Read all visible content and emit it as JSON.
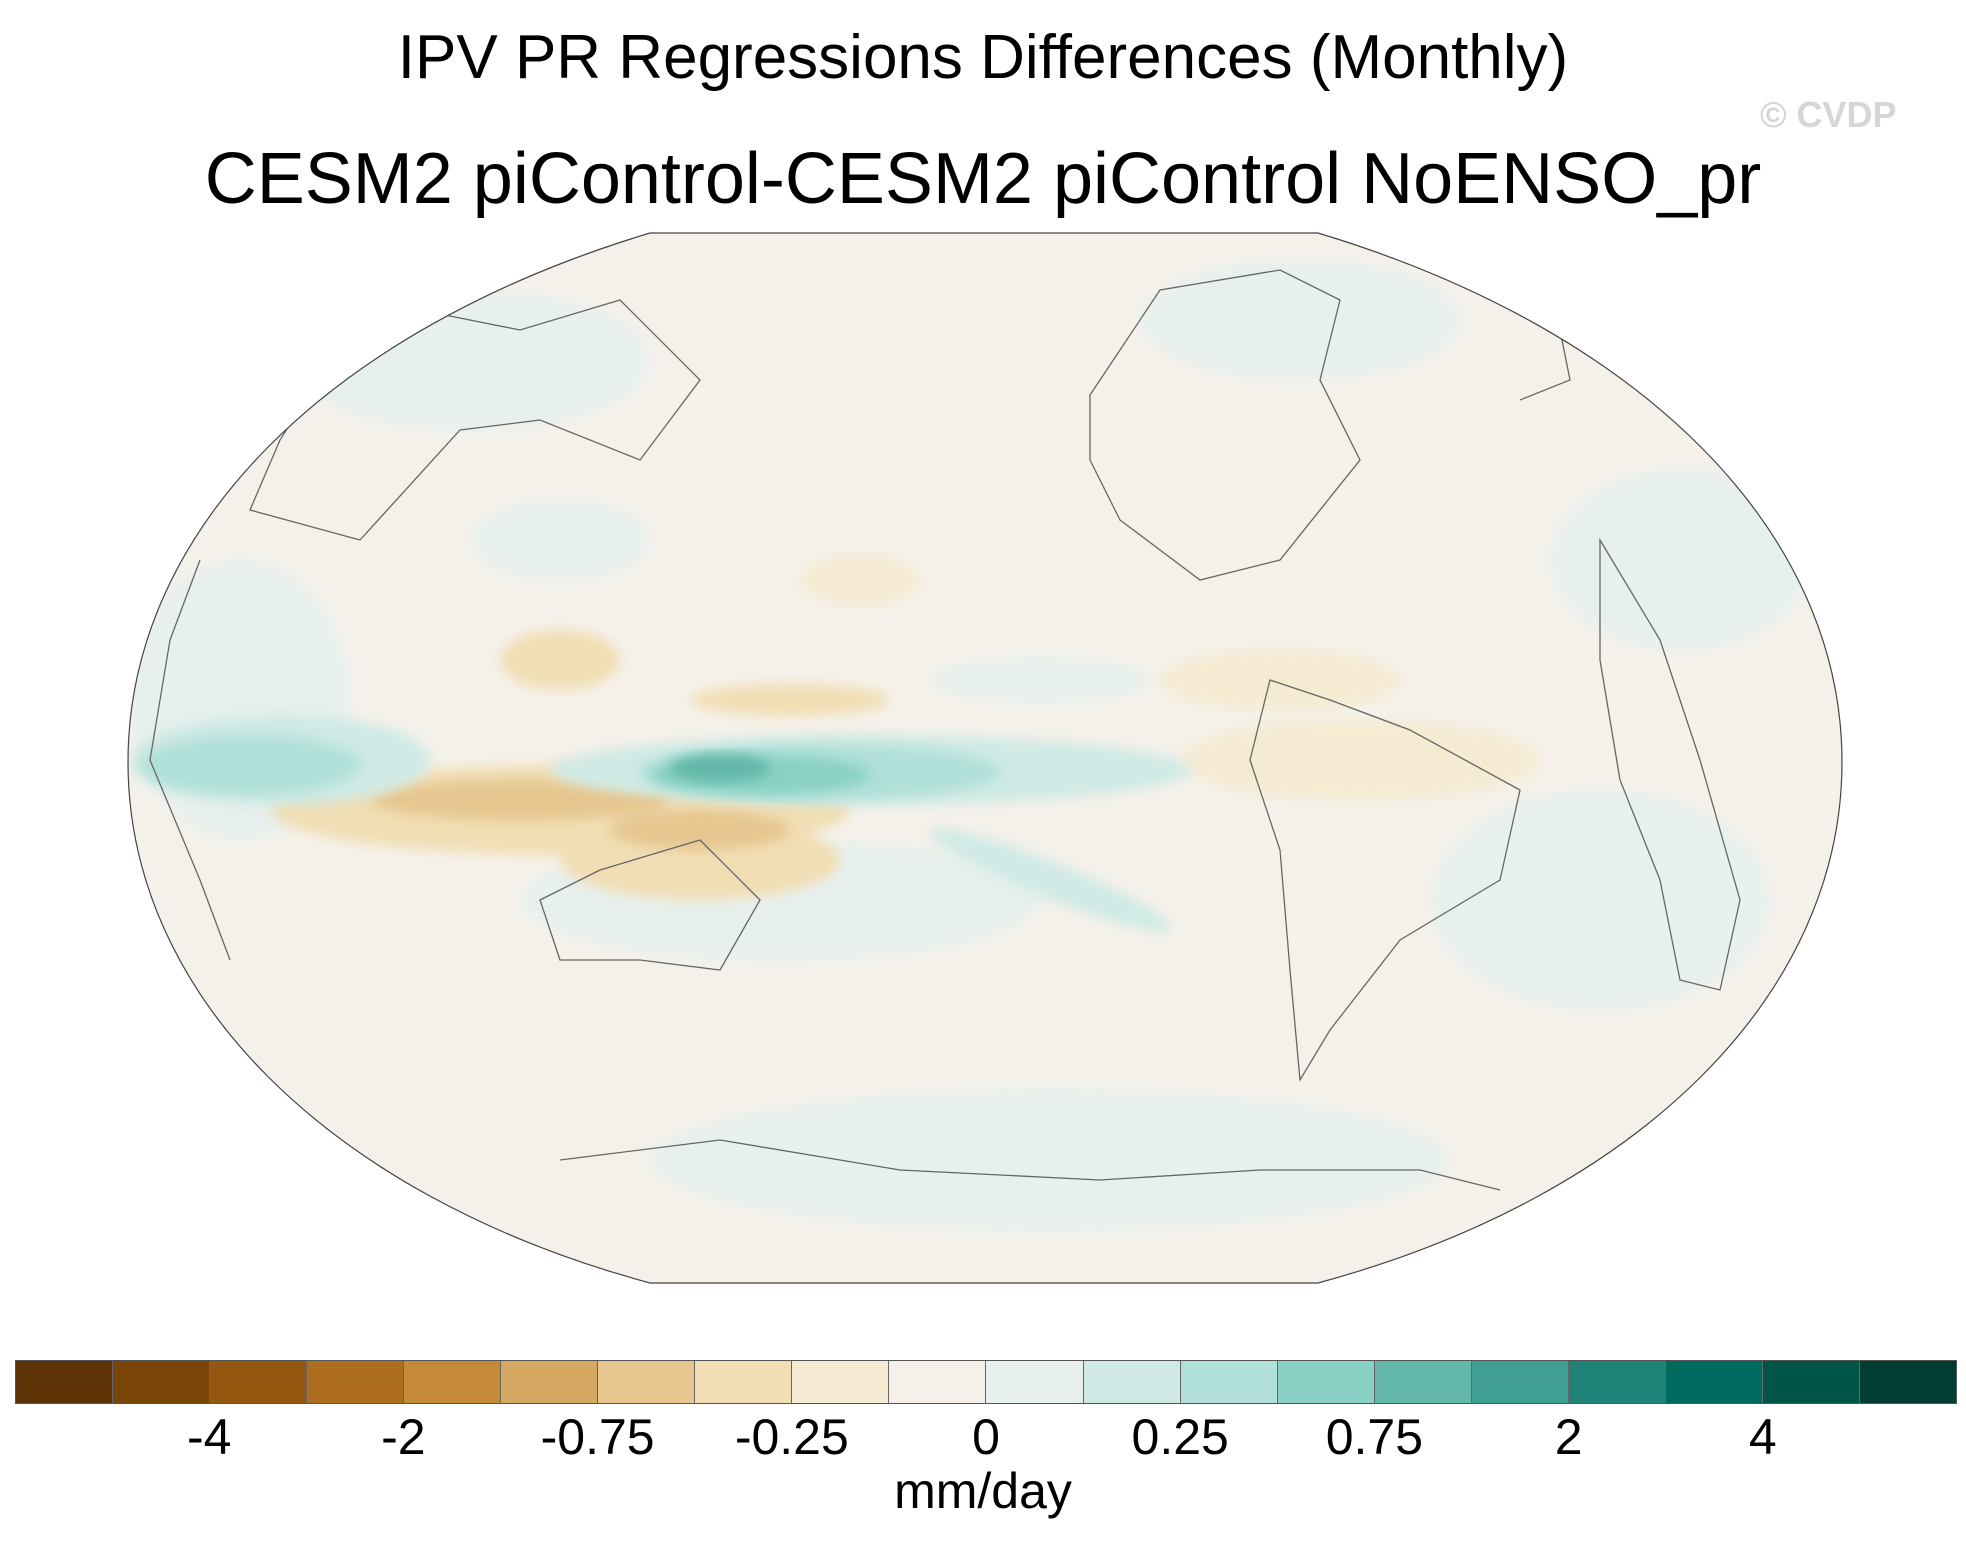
{
  "title": "IPV PR Regressions Differences (Monthly)",
  "subtitle": "CESM2 piControl-CESM2 piControl NoENSO_pr",
  "watermark": "© CVDP",
  "colorbar": {
    "colors": [
      "#5e3305",
      "#7a4509",
      "#955610",
      "#ad6d1f",
      "#c48a39",
      "#d6a962",
      "#e7c68f",
      "#f1deb4",
      "#f5ebd2",
      "#f5f1ea",
      "#e7f0ee",
      "#cfeae5",
      "#b0e0d8",
      "#89d1c4",
      "#64b8a9",
      "#41a093",
      "#208378",
      "#006a5e",
      "#015448",
      "#003d32"
    ],
    "ticks": [
      "-4",
      "-2",
      "-0.75",
      "-0.25",
      "0",
      "0.25",
      "0.75",
      "2",
      "4"
    ],
    "units": "mm/day"
  }
}
